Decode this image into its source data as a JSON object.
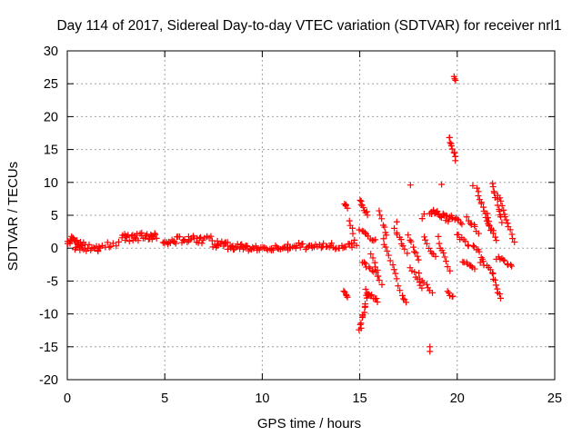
{
  "chart_data": {
    "type": "scatter",
    "title": "Day 114 of 2017, Sidereal Day-to-day VTEC variation (SDTVAR) for receiver nrl1",
    "xlabel": "GPS time / hours",
    "ylabel": "SDTVAR / TECUs",
    "xlim": [
      0,
      25
    ],
    "ylim": [
      -20,
      30
    ],
    "xticks": [
      0,
      5,
      10,
      15,
      20,
      25
    ],
    "xtick_labels": [
      "0",
      "5",
      "10",
      "15",
      "20",
      "25"
    ],
    "yticks": [
      -20,
      -15,
      -10,
      -5,
      0,
      5,
      10,
      15,
      20,
      25,
      30
    ],
    "ytick_labels": [
      "-20",
      "-15",
      "-10",
      "-5",
      "0",
      "5",
      "10",
      "15",
      "20",
      "25",
      "30"
    ],
    "grid": true,
    "marker": "+",
    "marker_color": "#ff0000",
    "series": [
      {
        "name": "SDTVAR",
        "segments": [
          {
            "x": [
              0.0,
              0.8
            ],
            "y": [
              1.5,
              0.3
            ],
            "n": 20,
            "spread": 0.8
          },
          {
            "x": [
              0.4,
              1.6
            ],
            "y": [
              0.3,
              0.0
            ],
            "n": 18,
            "spread": 0.6
          },
          {
            "x": [
              1.6,
              2.6
            ],
            "y": [
              0.2,
              0.8
            ],
            "n": 10,
            "spread": 0.5
          },
          {
            "x": [
              2.8,
              4.6
            ],
            "y": [
              1.5,
              2.0
            ],
            "n": 32,
            "spread": 0.6
          },
          {
            "x": [
              4.9,
              7.4
            ],
            "y": [
              1.2,
              1.3
            ],
            "n": 38,
            "spread": 0.6
          },
          {
            "x": [
              7.5,
              9.2
            ],
            "y": [
              0.6,
              0.0
            ],
            "n": 32,
            "spread": 0.6
          },
          {
            "x": [
              9.2,
              11.3
            ],
            "y": [
              0.0,
              0.0
            ],
            "n": 30,
            "spread": 0.4
          },
          {
            "x": [
              11.3,
              14.8
            ],
            "y": [
              0.3,
              0.3
            ],
            "n": 44,
            "spread": 0.5
          },
          {
            "x": [
              14.2,
              14.4
            ],
            "y": [
              7.0,
              6.2
            ],
            "n": 4,
            "spread": 0.3
          },
          {
            "x": [
              14.2,
              14.4
            ],
            "y": [
              -6.5,
              -7.5
            ],
            "n": 5,
            "spread": 0.3
          },
          {
            "x": [
              14.5,
              14.7
            ],
            "y": [
              4.0,
              1.5
            ],
            "n": 5,
            "spread": 0.3
          },
          {
            "x": [
              15.0,
              15.4
            ],
            "y": [
              7.5,
              5.0
            ],
            "n": 9,
            "spread": 0.3
          },
          {
            "x": [
              15.0,
              15.4
            ],
            "y": [
              -12.5,
              -7.0
            ],
            "n": 14,
            "spread": 0.3
          },
          {
            "x": [
              15.3,
              15.9
            ],
            "y": [
              -6.5,
              -8.0
            ],
            "n": 10,
            "spread": 0.3
          },
          {
            "x": [
              15.0,
              15.8
            ],
            "y": [
              3.0,
              1.0
            ],
            "n": 10,
            "spread": 0.3
          },
          {
            "x": [
              15.1,
              15.9
            ],
            "y": [
              -2.0,
              -4.0
            ],
            "n": 10,
            "spread": 0.3
          },
          {
            "x": [
              15.6,
              16.1
            ],
            "y": [
              -1.0,
              -5.5
            ],
            "n": 8,
            "spread": 0.3
          },
          {
            "x": [
              16.0,
              16.4
            ],
            "y": [
              5.5,
              2.0
            ],
            "n": 7,
            "spread": 0.3
          },
          {
            "x": [
              16.2,
              16.9
            ],
            "y": [
              1.5,
              -4.5
            ],
            "n": 10,
            "spread": 0.3
          },
          {
            "x": [
              16.8,
              17.4
            ],
            "y": [
              3.0,
              -0.5
            ],
            "n": 9,
            "spread": 0.3
          },
          {
            "x": [
              17.0,
              17.4
            ],
            "y": [
              -6.0,
              -8.5
            ],
            "n": 6,
            "spread": 0.3
          },
          {
            "x": [
              17.5,
              18.0
            ],
            "y": [
              2.0,
              -2.0
            ],
            "n": 8,
            "spread": 0.3
          },
          {
            "x": [
              17.6,
              18.2
            ],
            "y": [
              -3.0,
              -6.0
            ],
            "n": 8,
            "spread": 0.3
          },
          {
            "x": [
              18.0,
              18.7
            ],
            "y": [
              -4.0,
              -7.0
            ],
            "n": 8,
            "spread": 0.3
          },
          {
            "x": [
              18.3,
              18.9
            ],
            "y": [
              1.5,
              -1.5
            ],
            "n": 8,
            "spread": 0.3
          },
          {
            "x": [
              18.6,
              19.6
            ],
            "y": [
              5.5,
              4.5
            ],
            "n": 22,
            "spread": 0.5
          },
          {
            "x": [
              19.0,
              19.6
            ],
            "y": [
              1.5,
              -3.5
            ],
            "n": 9,
            "spread": 0.3
          },
          {
            "x": [
              19.5,
              19.8
            ],
            "y": [
              -6.5,
              -7.5
            ],
            "n": 5,
            "spread": 0.3
          },
          {
            "x": [
              19.6,
              19.9
            ],
            "y": [
              17.0,
              13.5
            ],
            "n": 10,
            "spread": 0.2
          },
          {
            "x": [
              19.8,
              19.9
            ],
            "y": [
              26.0,
              25.5
            ],
            "n": 3,
            "spread": 0.1
          },
          {
            "x": [
              19.6,
              20.2
            ],
            "y": [
              5.0,
              3.8
            ],
            "n": 10,
            "spread": 0.3
          },
          {
            "x": [
              20.0,
              20.6
            ],
            "y": [
              2.0,
              0.5
            ],
            "n": 8,
            "spread": 0.3
          },
          {
            "x": [
              20.3,
              20.9
            ],
            "y": [
              -2.0,
              -3.0
            ],
            "n": 8,
            "spread": 0.3
          },
          {
            "x": [
              20.5,
              21.1
            ],
            "y": [
              4.5,
              2.5
            ],
            "n": 8,
            "spread": 0.3
          },
          {
            "x": [
              20.8,
              21.3
            ],
            "y": [
              0.5,
              -1.5
            ],
            "n": 7,
            "spread": 0.3
          },
          {
            "x": [
              21.0,
              21.7
            ],
            "y": [
              9.0,
              3.0
            ],
            "n": 14,
            "spread": 0.3
          },
          {
            "x": [
              21.2,
              21.8
            ],
            "y": [
              -2.0,
              -3.5
            ],
            "n": 7,
            "spread": 0.3
          },
          {
            "x": [
              21.5,
              22.0
            ],
            "y": [
              5.0,
              1.0
            ],
            "n": 9,
            "spread": 0.3
          },
          {
            "x": [
              21.8,
              22.3
            ],
            "y": [
              10.0,
              4.0
            ],
            "n": 12,
            "spread": 0.3
          },
          {
            "x": [
              21.8,
              22.2
            ],
            "y": [
              -4.0,
              -7.5
            ],
            "n": 8,
            "spread": 0.3
          },
          {
            "x": [
              22.1,
              22.9
            ],
            "y": [
              8.0,
              1.0
            ],
            "n": 14,
            "spread": 0.3
          },
          {
            "x": [
              22.0,
              22.8
            ],
            "y": [
              -1.5,
              -2.5
            ],
            "n": 10,
            "spread": 0.3
          }
        ],
        "points": [
          {
            "x": 17.6,
            "y": 9.6
          },
          {
            "x": 18.3,
            "y": 5.2
          },
          {
            "x": 18.6,
            "y": -15.0
          },
          {
            "x": 18.6,
            "y": -15.7
          },
          {
            "x": 19.2,
            "y": 9.7
          },
          {
            "x": 20.8,
            "y": 9.5
          },
          {
            "x": 16.9,
            "y": 4.0
          },
          {
            "x": 18.2,
            "y": 4.5
          }
        ]
      }
    ]
  }
}
